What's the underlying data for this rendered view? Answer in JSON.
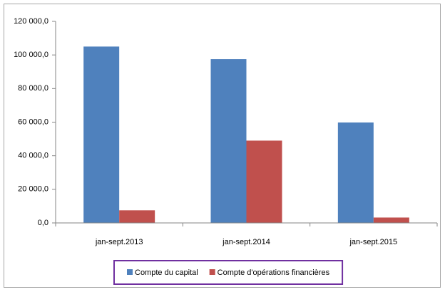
{
  "chart_data": {
    "type": "bar",
    "categories": [
      "jan-sept.2013",
      "jan-sept.2014",
      "jan-sept.2015"
    ],
    "series": [
      {
        "name": "Compte du capital",
        "color": "#4f81bd",
        "values": [
          105000,
          97500,
          59800
        ]
      },
      {
        "name": "Compte d'opérations financières",
        "color": "#c0504d",
        "values": [
          7500,
          49000,
          3200
        ]
      }
    ],
    "ylim": [
      0,
      120000
    ],
    "yticks": [
      {
        "value": 0,
        "label": "0,0"
      },
      {
        "value": 20000,
        "label": "20 000,0"
      },
      {
        "value": 40000,
        "label": "40 000,0"
      },
      {
        "value": 60000,
        "label": "60 000,0"
      },
      {
        "value": 80000,
        "label": "80 000,0"
      },
      {
        "value": 100000,
        "label": "100 000,0"
      },
      {
        "value": 120000,
        "label": "120 000,0"
      }
    ],
    "grid": false,
    "legend": "bottom"
  }
}
